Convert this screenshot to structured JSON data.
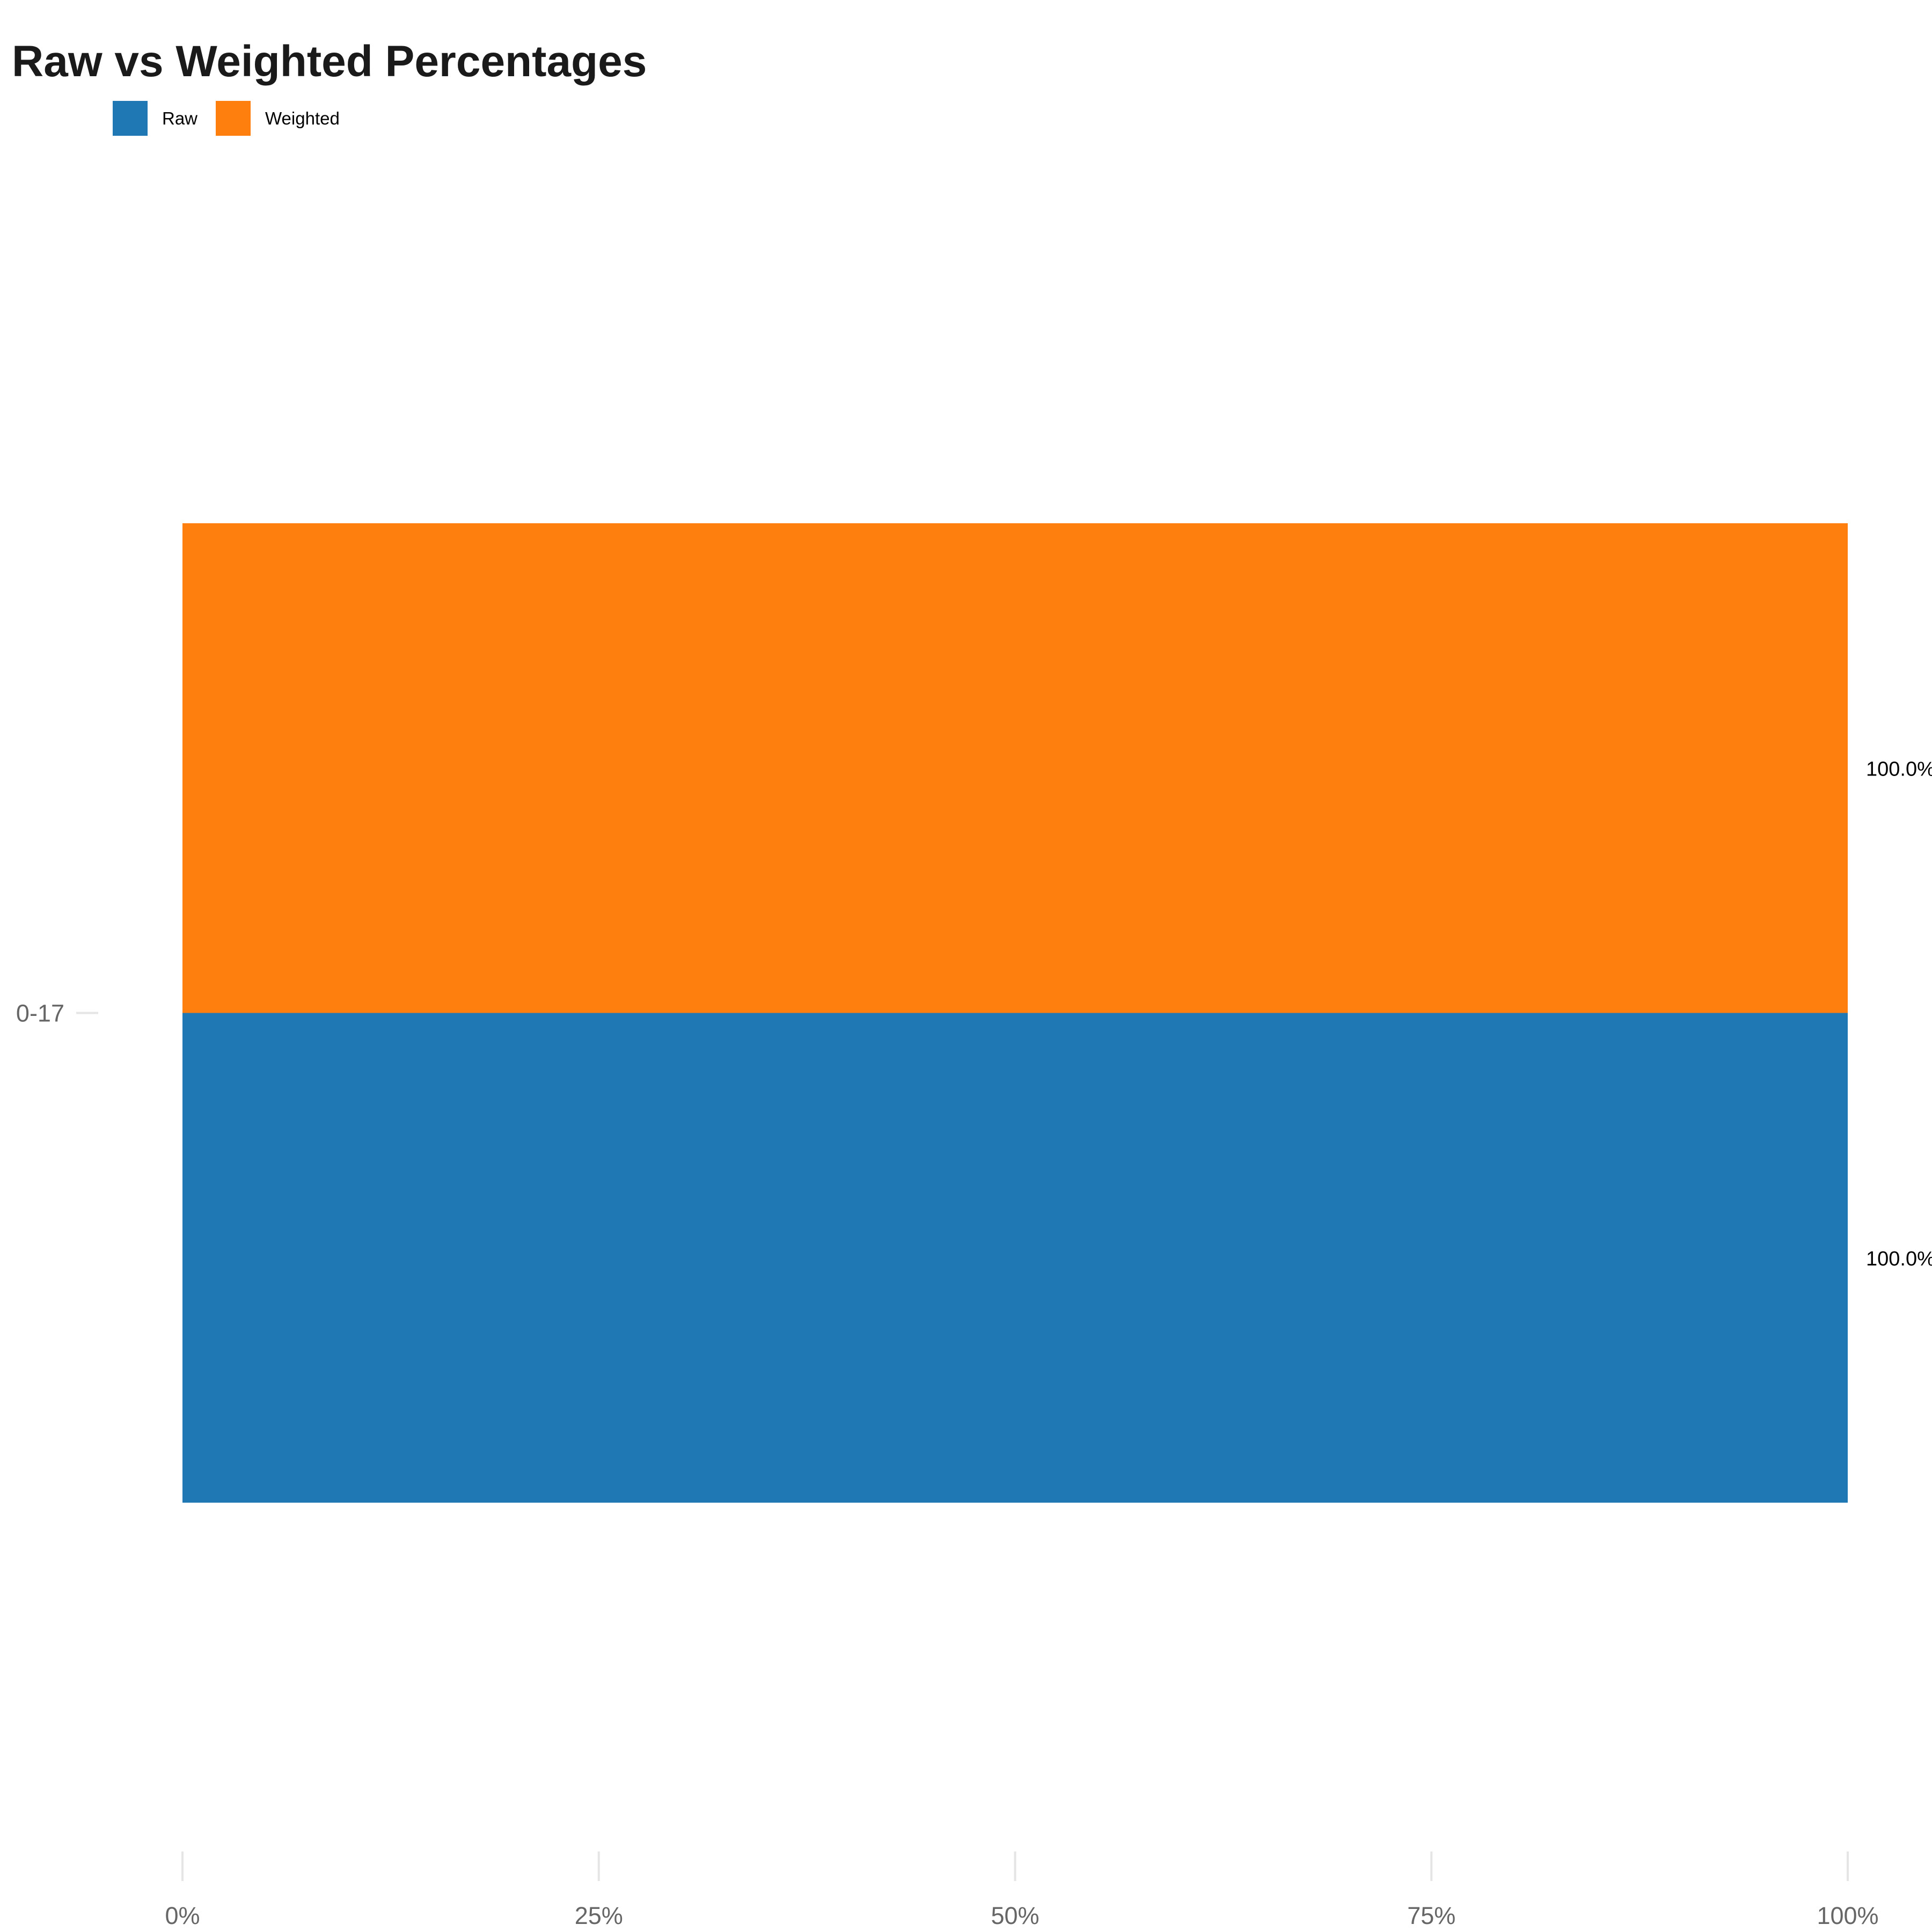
{
  "chart_data": {
    "type": "bar",
    "orientation": "horizontal",
    "title": "Raw vs Weighted Percentages",
    "categories": [
      "0-17"
    ],
    "series": [
      {
        "name": "Raw",
        "values": [
          100.0
        ],
        "color": "#1f77b4"
      },
      {
        "name": "Weighted",
        "values": [
          100.0
        ],
        "color": "#ff7f0e"
      }
    ],
    "data_labels": {
      "Raw": [
        "100.0%"
      ],
      "Weighted": [
        "100.0%"
      ]
    },
    "x_ticks": [
      "0%",
      "25%",
      "50%",
      "75%",
      "100%"
    ],
    "x_tick_values": [
      0,
      25,
      50,
      75,
      100
    ],
    "xlim": [
      0,
      100
    ],
    "xlabel": "",
    "ylabel": "",
    "legend_position": "top-left",
    "grid": false
  }
}
